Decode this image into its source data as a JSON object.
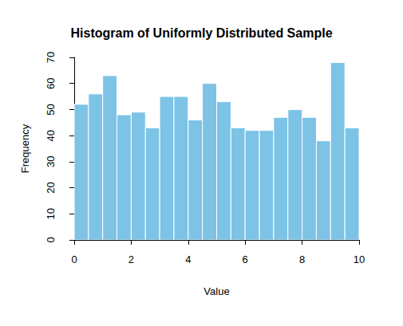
{
  "chart_data": {
    "type": "histogram",
    "title": "Histogram of Uniformly Distributed Sample",
    "x_label": "Value",
    "y_label": "Frequency",
    "bins": [
      0,
      0.5,
      1,
      1.5,
      2,
      2.5,
      3,
      3.5,
      4,
      4.5,
      5,
      5.5,
      6,
      6.5,
      7,
      7.5,
      8,
      8.5,
      9,
      9.5,
      10
    ],
    "values": [
      52,
      56,
      63,
      48,
      49,
      43,
      55,
      55,
      46,
      60,
      53,
      43,
      42,
      42,
      47,
      50,
      47,
      38,
      68,
      43
    ],
    "color": "#7cc3e6",
    "xlim": [
      0,
      10
    ],
    "xticks": [
      0,
      2,
      4,
      6,
      8,
      10
    ],
    "ylim": [
      0,
      70
    ],
    "yticks": [
      0,
      10,
      20,
      30,
      40,
      50,
      60,
      70
    ],
    "grid": false
  }
}
